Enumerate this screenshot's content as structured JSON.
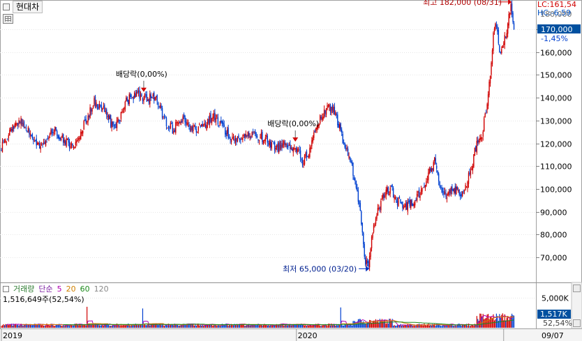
{
  "header": {
    "stock_name": "현대차",
    "lc_label": "LC:161,54",
    "hc_label": "HC:-6,59"
  },
  "price_panel": {
    "last_price_label": "170,000",
    "change_label": "-1,45%",
    "colors": {
      "up": "#d00000",
      "down": "#0040d0",
      "axis_text": "#000000",
      "grid": "#e6e6e6",
      "tag_bg": "#0050a0"
    }
  },
  "volume_panel": {
    "legend": [
      {
        "label": "거래량",
        "color": "#2e7d32"
      },
      {
        "label": "단순",
        "color": "#7b1fa2"
      },
      {
        "label": "5",
        "color": "#b000b0"
      },
      {
        "label": "20",
        "color": "#d08000"
      },
      {
        "label": "60",
        "color": "#1b8a1b"
      },
      {
        "label": "120",
        "color": "#888888"
      }
    ],
    "stat_label": "1,516,649주(52,54%)",
    "last_volume_label": "1,517K",
    "pct_label": "52,54%"
  },
  "chart_data": {
    "type": "candlestick",
    "y_axis": {
      "range": [
        60000,
        185000
      ],
      "ticks": [
        70000,
        80000,
        90000,
        100000,
        110000,
        120000,
        130000,
        140000,
        150000,
        160000,
        170000
      ],
      "tick_labels": [
        "70,000",
        "80,000",
        "90,000",
        "100,000",
        "110,000",
        "120,000",
        "130,000",
        "140,000",
        "150,000",
        "160,000",
        "170,000"
      ],
      "top_label_partial": "180,000"
    },
    "x_axis": {
      "labels": [
        {
          "text": "2019",
          "at": 0
        },
        {
          "text": "2020",
          "at": 286
        },
        {
          "text": "09/07",
          "at": 487
        }
      ]
    },
    "annotations": {
      "high": {
        "label": "최고 182,000 (08/31)",
        "value": 182000
      },
      "low": {
        "label": "최저 65,000 (03/20)",
        "value": 65000
      },
      "dividends": [
        {
          "label": "배당락(0,00%)",
          "index": 138
        },
        {
          "label": "배당락(0,00%)",
          "index": 285
        }
      ]
    },
    "volume_axis": {
      "range": [
        0,
        6000000
      ],
      "tick_label": "5,000K",
      "tick_value": 5000000
    },
    "price_anchors": [
      [
        0,
        118000
      ],
      [
        10,
        126000
      ],
      [
        20,
        130000
      ],
      [
        30,
        122000
      ],
      [
        40,
        118000
      ],
      [
        50,
        126000
      ],
      [
        60,
        122000
      ],
      [
        70,
        118000
      ],
      [
        80,
        128000
      ],
      [
        90,
        138000
      ],
      [
        100,
        134000
      ],
      [
        110,
        126000
      ],
      [
        120,
        138000
      ],
      [
        130,
        142000
      ],
      [
        140,
        140000
      ],
      [
        150,
        140000
      ],
      [
        158,
        130000
      ],
      [
        166,
        126000
      ],
      [
        176,
        130000
      ],
      [
        186,
        126000
      ],
      [
        196,
        128000
      ],
      [
        206,
        132000
      ],
      [
        214,
        128000
      ],
      [
        222,
        122000
      ],
      [
        232,
        122000
      ],
      [
        244,
        124000
      ],
      [
        256,
        122000
      ],
      [
        266,
        118000
      ],
      [
        276,
        120000
      ],
      [
        286,
        118000
      ],
      [
        292,
        112000
      ],
      [
        300,
        118000
      ],
      [
        306,
        128000
      ],
      [
        314,
        134000
      ],
      [
        320,
        136000
      ],
      [
        326,
        130000
      ],
      [
        332,
        120000
      ],
      [
        340,
        110000
      ],
      [
        346,
        96000
      ],
      [
        349,
        85000
      ],
      [
        353,
        68000
      ],
      [
        356,
        66000
      ],
      [
        360,
        82000
      ],
      [
        366,
        92000
      ],
      [
        372,
        98000
      ],
      [
        378,
        100000
      ],
      [
        382,
        96000
      ],
      [
        390,
        92000
      ],
      [
        398,
        94000
      ],
      [
        408,
        100000
      ],
      [
        416,
        108000
      ],
      [
        420,
        112000
      ],
      [
        426,
        100000
      ],
      [
        432,
        98000
      ],
      [
        440,
        100000
      ],
      [
        447,
        98000
      ],
      [
        452,
        104000
      ],
      [
        456,
        110000
      ],
      [
        460,
        118000
      ],
      [
        466,
        124000
      ],
      [
        470,
        134000
      ],
      [
        474,
        150000
      ],
      [
        477,
        168000
      ],
      [
        480,
        172000
      ],
      [
        484,
        158000
      ],
      [
        488,
        166000
      ],
      [
        491,
        172000
      ],
      [
        494,
        180000
      ],
      [
        497,
        170000
      ]
    ],
    "candle_count": 498
  }
}
